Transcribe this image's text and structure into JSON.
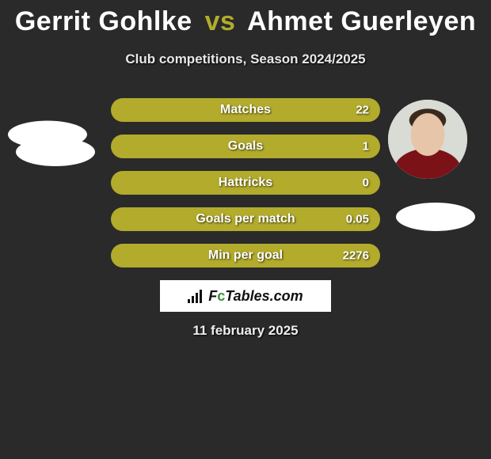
{
  "title": {
    "player1": "Gerrit Gohlke",
    "vs": "vs",
    "player2": "Ahmet Guerleyen"
  },
  "subtitle": "Club competitions, Season 2024/2025",
  "bars": {
    "bar_color": "#b2ab2b",
    "text_color": "#ffffff",
    "height": 30,
    "radius": 16,
    "gap": 16,
    "rows": [
      {
        "label": "Matches",
        "value_right": "22"
      },
      {
        "label": "Goals",
        "value_right": "1"
      },
      {
        "label": "Hattricks",
        "value_right": "0"
      },
      {
        "label": "Goals per match",
        "value_right": "0.05"
      },
      {
        "label": "Min per goal",
        "value_right": "2276"
      }
    ]
  },
  "brand": {
    "text_prefix": "F",
    "text_c": "c",
    "text_suffix": "Tables.com"
  },
  "date": "11 february 2025",
  "colors": {
    "background": "#2a2a2a",
    "accent": "#b2ab2b",
    "brand_bg": "#ffffff"
  }
}
